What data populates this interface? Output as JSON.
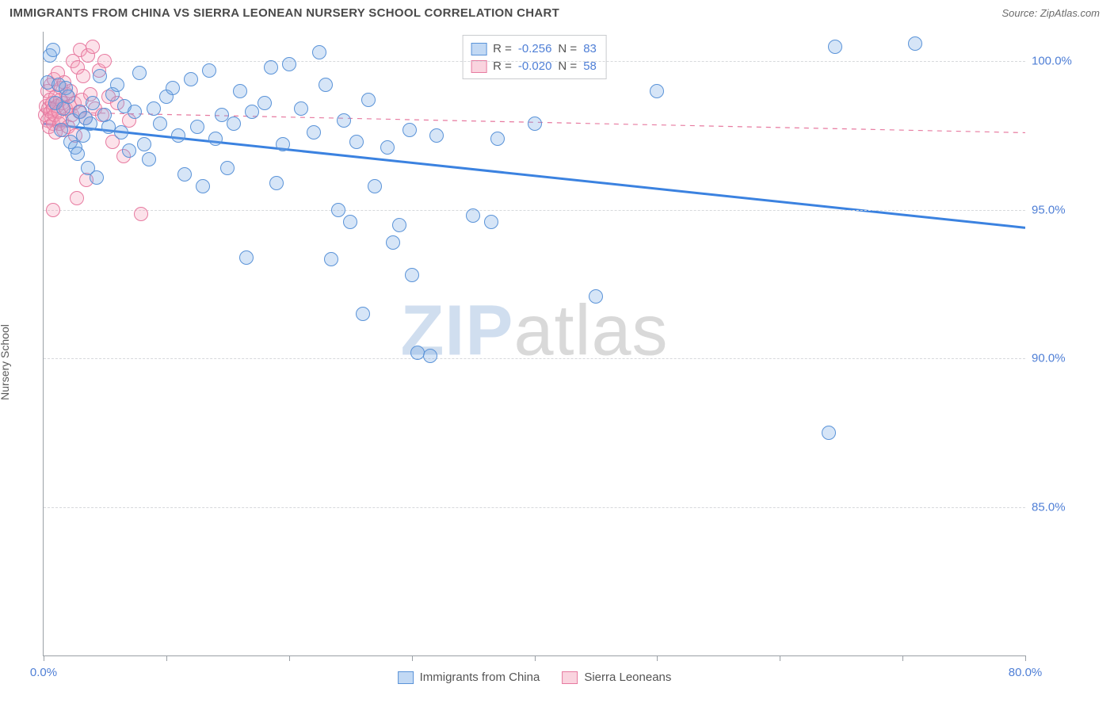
{
  "header": {
    "title": "IMMIGRANTS FROM CHINA VS SIERRA LEONEAN NURSERY SCHOOL CORRELATION CHART",
    "source": "Source: ZipAtlas.com"
  },
  "watermark": {
    "zip": "ZIP",
    "atlas": "atlas"
  },
  "chart": {
    "type": "scatter",
    "ylabel": "Nursery School",
    "x_domain": [
      0,
      80
    ],
    "y_domain": [
      80,
      101
    ],
    "y_ticks": [
      85.0,
      90.0,
      95.0,
      100.0
    ],
    "y_tick_labels": [
      "85.0%",
      "90.0%",
      "95.0%",
      "100.0%"
    ],
    "x_ticks": [
      0,
      10,
      20,
      30,
      40,
      50,
      60,
      70,
      80
    ],
    "x_tick_labels_visible": {
      "0": "0.0%",
      "80": "80.0%"
    },
    "grid_color": "#d7d9dc",
    "axis_color": "#9aa0a6",
    "background_color": "#ffffff",
    "tick_label_color": "#4f7fd6",
    "marker_radius": 9,
    "series": [
      {
        "name": "Immigrants from China",
        "key": "blue",
        "color_fill": "rgba(120,170,230,0.30)",
        "color_stroke": "#5a93d8",
        "R": -0.256,
        "N": 83,
        "trend": {
          "x1": 0,
          "y1": 97.9,
          "x2": 80,
          "y2": 94.4,
          "stroke": "#3b82e0",
          "width": 3,
          "dash": "none"
        },
        "points": [
          [
            0.3,
            99.3
          ],
          [
            0.5,
            100.2
          ],
          [
            0.8,
            100.4
          ],
          [
            1.0,
            98.6
          ],
          [
            1.2,
            99.2
          ],
          [
            1.4,
            97.7
          ],
          [
            1.6,
            98.4
          ],
          [
            1.8,
            99.1
          ],
          [
            2.0,
            98.8
          ],
          [
            2.2,
            97.3
          ],
          [
            2.4,
            98.0
          ],
          [
            2.6,
            97.1
          ],
          [
            2.8,
            96.9
          ],
          [
            3.0,
            98.3
          ],
          [
            3.2,
            97.5
          ],
          [
            3.4,
            98.1
          ],
          [
            3.6,
            96.4
          ],
          [
            3.8,
            97.9
          ],
          [
            4.0,
            98.6
          ],
          [
            4.3,
            96.1
          ],
          [
            4.6,
            99.5
          ],
          [
            5.0,
            98.2
          ],
          [
            5.3,
            97.8
          ],
          [
            5.6,
            98.9
          ],
          [
            6.0,
            99.2
          ],
          [
            6.3,
            97.6
          ],
          [
            6.6,
            98.5
          ],
          [
            7.0,
            97.0
          ],
          [
            7.4,
            98.3
          ],
          [
            7.8,
            99.6
          ],
          [
            8.2,
            97.2
          ],
          [
            8.6,
            96.7
          ],
          [
            9.0,
            98.4
          ],
          [
            9.5,
            97.9
          ],
          [
            10.0,
            98.8
          ],
          [
            10.5,
            99.1
          ],
          [
            11.0,
            97.5
          ],
          [
            11.5,
            96.2
          ],
          [
            12.0,
            99.4
          ],
          [
            12.5,
            97.8
          ],
          [
            13.0,
            95.8
          ],
          [
            13.5,
            99.7
          ],
          [
            14.0,
            97.4
          ],
          [
            14.5,
            98.2
          ],
          [
            15.0,
            96.4
          ],
          [
            15.5,
            97.9
          ],
          [
            16.0,
            99.0
          ],
          [
            16.5,
            93.4
          ],
          [
            17.0,
            98.3
          ],
          [
            18.0,
            98.6
          ],
          [
            18.5,
            99.8
          ],
          [
            19.0,
            95.9
          ],
          [
            19.5,
            97.2
          ],
          [
            20.0,
            99.9
          ],
          [
            21.0,
            98.4
          ],
          [
            22.0,
            97.6
          ],
          [
            22.5,
            100.3
          ],
          [
            23.0,
            99.2
          ],
          [
            23.42,
            93.35
          ],
          [
            24.0,
            95.0
          ],
          [
            24.5,
            98.0
          ],
          [
            25.0,
            94.6
          ],
          [
            25.5,
            97.3
          ],
          [
            26.0,
            91.5
          ],
          [
            26.5,
            98.7
          ],
          [
            27.0,
            95.8
          ],
          [
            28.0,
            97.1
          ],
          [
            28.5,
            93.9
          ],
          [
            29.0,
            94.5
          ],
          [
            29.8,
            97.7
          ],
          [
            30.0,
            92.8
          ],
          [
            30.5,
            90.2
          ],
          [
            31.5,
            90.1
          ],
          [
            32.0,
            97.5
          ],
          [
            35.0,
            94.8
          ],
          [
            36.5,
            94.6
          ],
          [
            37.0,
            97.4
          ],
          [
            40.0,
            97.9
          ],
          [
            45.0,
            92.1
          ],
          [
            50.0,
            99.0
          ],
          [
            64.5,
            100.5
          ],
          [
            71.0,
            100.6
          ],
          [
            64.0,
            87.5
          ]
        ]
      },
      {
        "name": "Sierra Leoneans",
        "key": "pink",
        "color_fill": "rgba(245,160,185,0.30)",
        "color_stroke": "#e77aa0",
        "R": -0.02,
        "N": 58,
        "trend": {
          "x1": 0,
          "y1": 98.3,
          "x2": 80,
          "y2": 97.6,
          "stroke": "#e77aa0",
          "width": 1.2,
          "dash": "6 6"
        },
        "points": [
          [
            0.1,
            98.2
          ],
          [
            0.2,
            98.5
          ],
          [
            0.3,
            98.0
          ],
          [
            0.35,
            99.0
          ],
          [
            0.4,
            98.4
          ],
          [
            0.45,
            97.8
          ],
          [
            0.5,
            98.7
          ],
          [
            0.55,
            98.3
          ],
          [
            0.6,
            99.2
          ],
          [
            0.65,
            98.1
          ],
          [
            0.7,
            98.6
          ],
          [
            0.75,
            97.9
          ],
          [
            0.8,
            98.4
          ],
          [
            0.85,
            99.4
          ],
          [
            0.9,
            98.2
          ],
          [
            0.95,
            98.8
          ],
          [
            1.0,
            97.6
          ],
          [
            1.1,
            98.5
          ],
          [
            1.15,
            99.6
          ],
          [
            1.2,
            98.3
          ],
          [
            1.3,
            97.9
          ],
          [
            1.35,
            98.7
          ],
          [
            1.4,
            99.1
          ],
          [
            1.5,
            98.0
          ],
          [
            1.55,
            98.6
          ],
          [
            1.6,
            97.7
          ],
          [
            1.7,
            99.3
          ],
          [
            1.8,
            98.4
          ],
          [
            1.9,
            98.9
          ],
          [
            2.0,
            97.8
          ],
          [
            2.1,
            98.5
          ],
          [
            2.2,
            99.0
          ],
          [
            2.3,
            98.2
          ],
          [
            2.4,
            100.0
          ],
          [
            2.5,
            98.6
          ],
          [
            2.6,
            97.5
          ],
          [
            2.8,
            99.8
          ],
          [
            2.9,
            98.3
          ],
          [
            3.0,
            100.4
          ],
          [
            3.1,
            98.7
          ],
          [
            3.2,
            99.5
          ],
          [
            3.4,
            98.1
          ],
          [
            3.6,
            100.2
          ],
          [
            3.8,
            98.9
          ],
          [
            4.0,
            100.5
          ],
          [
            4.2,
            98.4
          ],
          [
            4.5,
            99.7
          ],
          [
            4.8,
            98.2
          ],
          [
            5.0,
            100.0
          ],
          [
            5.3,
            98.8
          ],
          [
            5.6,
            97.3
          ],
          [
            6.0,
            98.6
          ],
          [
            6.5,
            96.8
          ],
          [
            7.0,
            98.0
          ],
          [
            7.93,
            94.87
          ],
          [
            0.8,
            95.0
          ],
          [
            2.7,
            95.4
          ],
          [
            3.5,
            96.0
          ]
        ]
      }
    ],
    "legend_top": {
      "rows": [
        {
          "sw": "blue",
          "r_label": "R = ",
          "r_val": "-0.256",
          "n_label": "   N = ",
          "n_val": "83"
        },
        {
          "sw": "pink",
          "r_label": "R = ",
          "r_val": "-0.020",
          "n_label": "   N = ",
          "n_val": "58"
        }
      ]
    },
    "legend_bottom": [
      {
        "sw": "blue",
        "label": "Immigrants from China"
      },
      {
        "sw": "pink",
        "label": "Sierra Leoneans"
      }
    ]
  }
}
